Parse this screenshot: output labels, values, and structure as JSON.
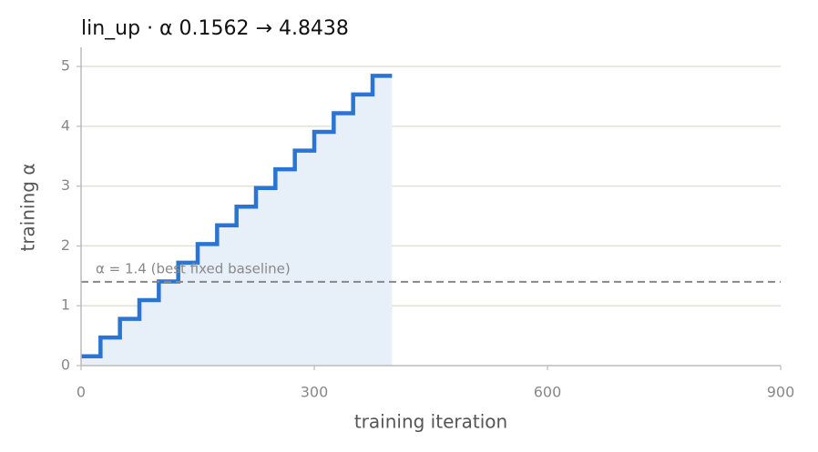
{
  "chart_data": {
    "type": "line",
    "step": "post",
    "title": "lin_up   ·   α 0.1562 → 4.8438",
    "x_label": "training iteration",
    "y_label": "training α",
    "x": [
      0,
      25,
      50,
      75,
      100,
      125,
      150,
      175,
      200,
      225,
      250,
      275,
      300,
      325,
      350,
      375,
      400
    ],
    "series": [
      {
        "name": "training α",
        "color": "#2b74d4",
        "values": [
          0.1562,
          0.4687,
          0.7812,
          1.0937,
          1.4062,
          1.7187,
          2.0312,
          2.3437,
          2.6562,
          2.9687,
          3.2812,
          3.5937,
          3.9062,
          4.2187,
          4.5312,
          4.8438,
          4.8438
        ]
      }
    ],
    "fill_color": "#e7eff9",
    "baseline": {
      "value": 1.4,
      "label": "α = 1.4 (best fixed baseline)",
      "color": "#888888"
    },
    "xlim": [
      0,
      900
    ],
    "xticks": [
      0,
      300,
      600,
      900
    ],
    "ylim": [
      0,
      5.32
    ],
    "yticks": [
      0,
      1,
      2,
      3,
      4,
      5
    ],
    "grid": true
  }
}
